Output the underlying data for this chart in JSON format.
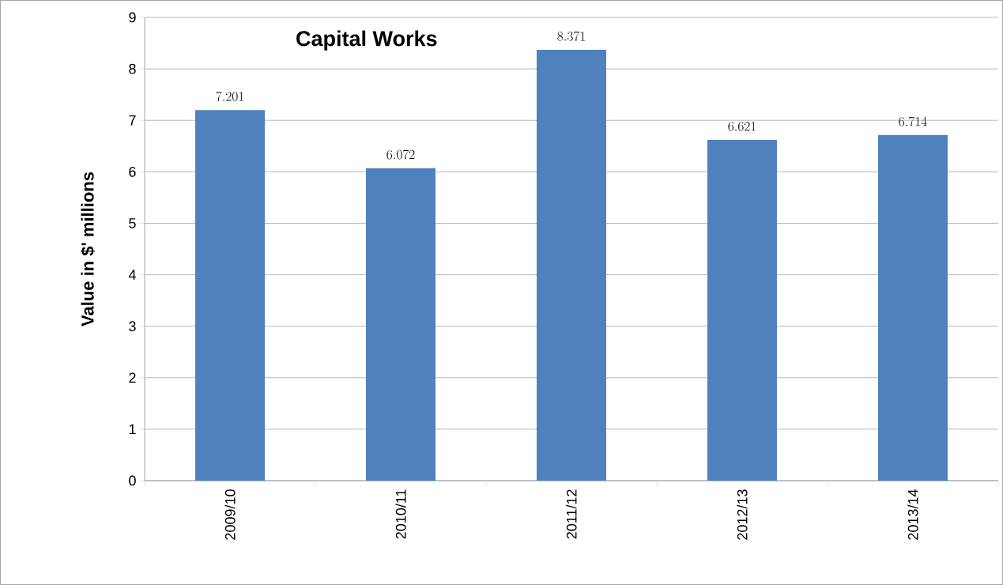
{
  "chart_data": {
    "type": "bar",
    "title": "Capital Works",
    "ylabel": "Value in $' millions",
    "categories": [
      "2009/10",
      "2010/11",
      "2011/12",
      "2012/13",
      "2013/14"
    ],
    "values": [
      7.201,
      6.072,
      8.371,
      6.621,
      6.714
    ],
    "color": "#4f81bd",
    "ylim": [
      0,
      9
    ],
    "yticks": [
      0,
      1,
      2,
      3,
      4,
      5,
      6,
      7,
      8,
      9
    ],
    "grid": "y",
    "data_labels": true
  }
}
